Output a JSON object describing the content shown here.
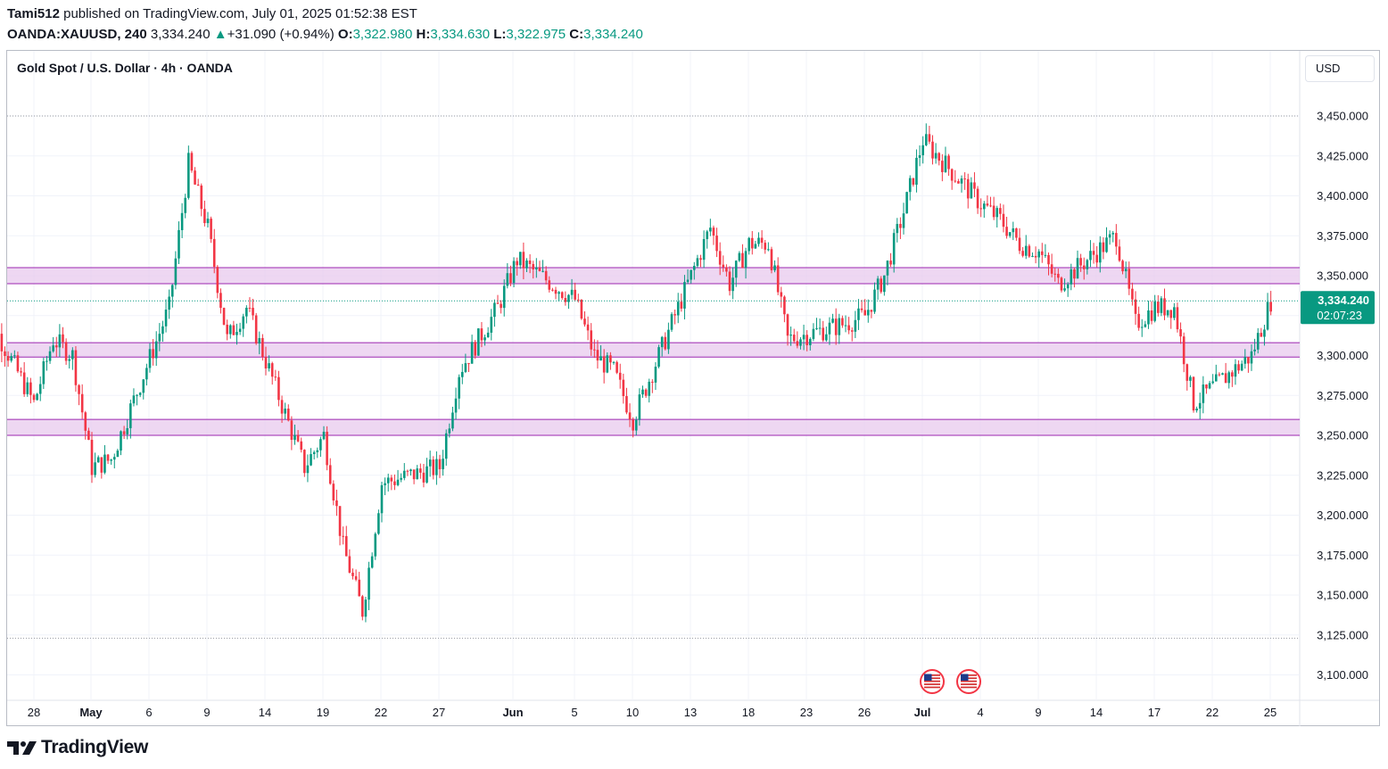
{
  "header": {
    "author": "Tami512",
    "published_text": "published on TradingView.com, July 01, 2025 01:52:38 EST",
    "symbol": "OANDA:XAUUSD, 240",
    "last": "3,334.240",
    "change": "+31.090 (+0.94%)",
    "o_label": "O:",
    "o": "3,322.980",
    "h_label": "H:",
    "h": "3,334.630",
    "l_label": "L:",
    "l": "3,322.975",
    "c_label": "C:",
    "c": "3,334.240"
  },
  "chart_title": "Gold Spot / U.S. Dollar · 4h · OANDA",
  "currency_button": "USD",
  "price_badge": {
    "price": "3,334.240",
    "countdown": "02:07:23"
  },
  "brand": "TradingView",
  "colors": {
    "up": "#089981",
    "down": "#f23645",
    "zone_fill": "#e8c9ee",
    "zone_line": "#9c27b0",
    "grid": "#f0f3fa"
  },
  "chart_data": {
    "type": "candlestick",
    "title": "Gold Spot / U.S. Dollar · 4h · OANDA",
    "ylim": [
      3090,
      3460
    ],
    "y_ticks": [
      "3,450.000",
      "3,425.000",
      "3,400.000",
      "3,375.000",
      "3,350.000",
      "3,325.000",
      "3,300.000",
      "3,275.000",
      "3,250.000",
      "3,225.000",
      "3,200.000",
      "3,175.000",
      "3,150.000",
      "3,125.000",
      "3,100.000"
    ],
    "x_tick_labels": [
      "28",
      "May",
      "6",
      "9",
      "14",
      "19",
      "22",
      "27",
      "Jun",
      "5",
      "10",
      "13",
      "18",
      "23",
      "26",
      "Jul",
      "4",
      "9",
      "14",
      "17",
      "22",
      "25"
    ],
    "zones": [
      {
        "low": 3345,
        "high": 3355
      },
      {
        "low": 3299,
        "high": 3308
      },
      {
        "low": 3250,
        "high": 3260
      }
    ],
    "ohlc_close_path": [
      [
        "2025-04-25",
        3340
      ],
      [
        "2025-04-28",
        3270
      ],
      [
        "2025-04-29",
        3310
      ],
      [
        "2025-04-30",
        3300
      ],
      [
        "2025-05-01",
        3230
      ],
      [
        "2025-05-02",
        3235
      ],
      [
        "2025-05-05",
        3330
      ],
      [
        "2025-05-06",
        3420
      ],
      [
        "2025-05-07",
        3380
      ],
      [
        "2025-05-08",
        3310
      ],
      [
        "2025-05-09",
        3330
      ],
      [
        "2025-05-12",
        3230
      ],
      [
        "2025-05-13",
        3250
      ],
      [
        "2025-05-14",
        3180
      ],
      [
        "2025-05-15",
        3140
      ],
      [
        "2025-05-16",
        3220
      ],
      [
        "2025-05-19",
        3230
      ],
      [
        "2025-05-20",
        3290
      ],
      [
        "2025-05-21",
        3310
      ],
      [
        "2025-05-22",
        3330
      ],
      [
        "2025-05-23",
        3360
      ],
      [
        "2025-05-26",
        3335
      ],
      [
        "2025-05-27",
        3300
      ],
      [
        "2025-05-28",
        3290
      ],
      [
        "2025-05-29",
        3260
      ],
      [
        "2025-05-30",
        3290
      ],
      [
        "2025-06-02",
        3380
      ],
      [
        "2025-06-03",
        3345
      ],
      [
        "2025-06-04",
        3370
      ],
      [
        "2025-06-05",
        3370
      ],
      [
        "2025-06-06",
        3310
      ],
      [
        "2025-06-09",
        3320
      ],
      [
        "2025-06-10",
        3325
      ],
      [
        "2025-06-11",
        3350
      ],
      [
        "2025-06-12",
        3390
      ],
      [
        "2025-06-13",
        3435
      ],
      [
        "2025-06-16",
        3395
      ],
      [
        "2025-06-17",
        3385
      ],
      [
        "2025-06-18",
        3370
      ],
      [
        "2025-06-19",
        3365
      ],
      [
        "2025-06-20",
        3345
      ],
      [
        "2025-06-23",
        3375
      ],
      [
        "2025-06-24",
        3320
      ],
      [
        "2025-06-25",
        3330
      ],
      [
        "2025-06-26",
        3330
      ],
      [
        "2025-06-27",
        3270
      ],
      [
        "2025-06-30",
        3300
      ],
      [
        "2025-07-01",
        3334.24
      ]
    ],
    "last_price": 3334.24,
    "event_markers": [
      "us-flag",
      "us-flag"
    ]
  }
}
